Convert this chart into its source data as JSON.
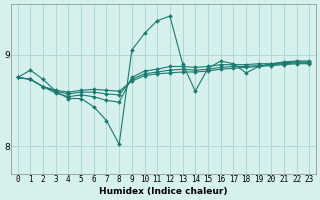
{
  "xlabel": "Humidex (Indice chaleur)",
  "background_color": "#d6f0ee",
  "grid_color": "#b0d8d5",
  "line_color": "#1a7a6e",
  "xlim": [
    -0.5,
    23.5
  ],
  "ylim": [
    7.7,
    9.55
  ],
  "yticks": [
    8,
    9
  ],
  "xticks": [
    0,
    1,
    2,
    3,
    4,
    5,
    6,
    7,
    8,
    9,
    10,
    11,
    12,
    13,
    14,
    15,
    16,
    17,
    18,
    19,
    20,
    21,
    22,
    23
  ],
  "series": [
    [
      8.75,
      8.83,
      8.73,
      8.6,
      8.52,
      8.52,
      8.43,
      8.28,
      8.02,
      9.05,
      9.23,
      9.37,
      9.42,
      8.9,
      8.6,
      8.85,
      8.93,
      8.9,
      8.8,
      8.87,
      8.9,
      8.92,
      8.93,
      8.93
    ],
    [
      8.75,
      8.73,
      8.65,
      8.58,
      8.54,
      8.56,
      8.54,
      8.5,
      8.48,
      8.75,
      8.82,
      8.84,
      8.87,
      8.87,
      8.86,
      8.87,
      8.89,
      8.89,
      8.89,
      8.9,
      8.9,
      8.91,
      8.92,
      8.92
    ],
    [
      8.75,
      8.73,
      8.65,
      8.6,
      8.57,
      8.59,
      8.59,
      8.57,
      8.56,
      8.73,
      8.79,
      8.81,
      8.83,
      8.84,
      8.83,
      8.84,
      8.86,
      8.87,
      8.87,
      8.88,
      8.89,
      8.9,
      8.91,
      8.91
    ],
    [
      8.75,
      8.73,
      8.65,
      8.61,
      8.59,
      8.61,
      8.62,
      8.61,
      8.6,
      8.71,
      8.77,
      8.79,
      8.8,
      8.81,
      8.81,
      8.82,
      8.84,
      8.85,
      8.86,
      8.87,
      8.88,
      8.89,
      8.9,
      8.9
    ]
  ]
}
